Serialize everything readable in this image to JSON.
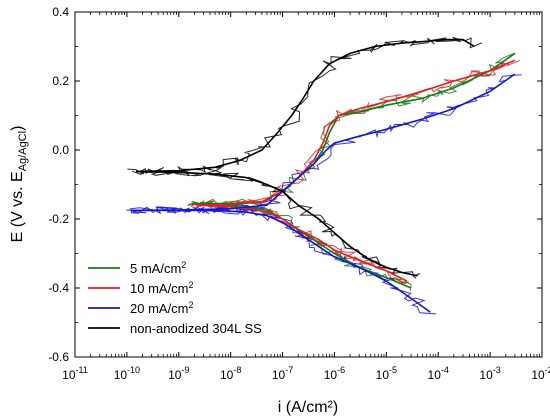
{
  "chart_data": {
    "type": "line",
    "xlabel": "i (A/cm²)",
    "ylabel": "E (V vs. E",
    "ylabel_sub": "Ag/AgCl",
    "ylabel_end": ")",
    "x_scale": "log",
    "xlim": [
      1e-11,
      0.01
    ],
    "ylim": [
      -0.6,
      0.4
    ],
    "grid": false,
    "legend_position": "bottom-left",
    "x_ticks": [
      {
        "value": 1e-11,
        "base": "10",
        "exp": "-11"
      },
      {
        "value": 1e-10,
        "base": "10",
        "exp": "-10"
      },
      {
        "value": 1e-09,
        "base": "10",
        "exp": "-9"
      },
      {
        "value": 1e-08,
        "base": "10",
        "exp": "-8"
      },
      {
        "value": 1e-07,
        "base": "10",
        "exp": "-7"
      },
      {
        "value": 1e-06,
        "base": "10",
        "exp": "-6"
      },
      {
        "value": 1e-05,
        "base": "10",
        "exp": "-5"
      },
      {
        "value": 0.0001,
        "base": "10",
        "exp": "-4"
      },
      {
        "value": 0.001,
        "base": "10",
        "exp": "-3"
      },
      {
        "value": 0.01,
        "base": "10",
        "exp": "-2"
      }
    ],
    "y_ticks": [
      {
        "value": 0.4,
        "label": "0.4"
      },
      {
        "value": 0.2,
        "label": "0.2"
      },
      {
        "value": 0.0,
        "label": "0.0"
      },
      {
        "value": -0.2,
        "label": "-0.2"
      },
      {
        "value": -0.4,
        "label": "-0.4"
      },
      {
        "value": -0.6,
        "label": "-0.6"
      }
    ],
    "series": [
      {
        "name": "5 mA/cm",
        "name_sup": "2",
        "color": "#1a7a1a",
        "cathodic": [
          [
            1.8e-09,
            -0.155
          ],
          [
            5e-09,
            -0.158
          ],
          [
            2e-08,
            -0.163
          ],
          [
            5e-08,
            -0.175
          ],
          [
            1e-07,
            -0.2
          ],
          [
            2e-07,
            -0.23
          ],
          [
            5e-07,
            -0.27
          ],
          [
            1e-06,
            -0.3
          ],
          [
            3e-06,
            -0.34
          ],
          [
            1e-05,
            -0.37
          ],
          [
            3e-05,
            -0.4
          ]
        ],
        "anodic": [
          [
            1.8e-09,
            -0.155
          ],
          [
            1e-08,
            -0.155
          ],
          [
            4e-08,
            -0.15
          ],
          [
            1e-07,
            -0.12
          ],
          [
            2e-07,
            -0.08
          ],
          [
            4e-07,
            -0.04
          ],
          [
            6e-07,
            0.0
          ],
          [
            8e-07,
            0.05
          ],
          [
            1.2e-06,
            0.1
          ],
          [
            3e-06,
            0.11
          ],
          [
            1e-05,
            0.13
          ],
          [
            5e-05,
            0.15
          ],
          [
            0.0002,
            0.18
          ],
          [
            0.001,
            0.23
          ],
          [
            0.003,
            0.28
          ]
        ]
      },
      {
        "name": "10 mA/cm",
        "name_sup": "2",
        "color": "#e02020",
        "cathodic": [
          [
            2.2e-09,
            -0.16
          ],
          [
            5e-09,
            -0.162
          ],
          [
            2e-08,
            -0.168
          ],
          [
            5e-08,
            -0.18
          ],
          [
            1e-07,
            -0.2
          ],
          [
            2e-07,
            -0.23
          ],
          [
            5e-07,
            -0.26
          ],
          [
            1e-06,
            -0.29
          ],
          [
            3e-06,
            -0.32
          ],
          [
            1e-05,
            -0.35
          ],
          [
            2.5e-05,
            -0.38
          ]
        ],
        "anodic": [
          [
            2.2e-09,
            -0.16
          ],
          [
            1e-08,
            -0.158
          ],
          [
            4e-08,
            -0.15
          ],
          [
            1e-07,
            -0.12
          ],
          [
            2e-07,
            -0.08
          ],
          [
            4e-07,
            -0.03
          ],
          [
            6e-07,
            0.02
          ],
          [
            8e-07,
            0.07
          ],
          [
            1.2e-06,
            0.1
          ],
          [
            3e-06,
            0.12
          ],
          [
            1e-05,
            0.14
          ],
          [
            5e-05,
            0.17
          ],
          [
            0.0002,
            0.2
          ],
          [
            0.001,
            0.23
          ],
          [
            0.003,
            0.26
          ]
        ]
      },
      {
        "name": "20 mA/cm",
        "name_sup": "2",
        "color": "#1414d4",
        "cathodic": [
          [
            1.2e-10,
            -0.175
          ],
          [
            5e-10,
            -0.175
          ],
          [
            5e-09,
            -0.175
          ],
          [
            2e-08,
            -0.18
          ],
          [
            5e-08,
            -0.19
          ],
          [
            1e-07,
            -0.21
          ],
          [
            2e-07,
            -0.24
          ],
          [
            5e-07,
            -0.28
          ],
          [
            1e-06,
            -0.31
          ],
          [
            3e-06,
            -0.34
          ],
          [
            1e-05,
            -0.38
          ],
          [
            3e-05,
            -0.43
          ],
          [
            7e-05,
            -0.47
          ]
        ],
        "anodic": [
          [
            1.2e-10,
            -0.175
          ],
          [
            1e-09,
            -0.174
          ],
          [
            1e-08,
            -0.17
          ],
          [
            5e-08,
            -0.16
          ],
          [
            1e-07,
            -0.12
          ],
          [
            2e-07,
            -0.08
          ],
          [
            4e-07,
            -0.04
          ],
          [
            7e-07,
            0.0
          ],
          [
            1e-06,
            0.02
          ],
          [
            3e-06,
            0.04
          ],
          [
            1e-05,
            0.06
          ],
          [
            5e-05,
            0.09
          ],
          [
            0.0002,
            0.12
          ],
          [
            0.001,
            0.17
          ],
          [
            0.003,
            0.22
          ]
        ]
      },
      {
        "name": "non-anodized 304L SS",
        "name_sup": "",
        "color": "#000000",
        "cathodic": [
          [
            1.5e-10,
            -0.062
          ],
          [
            1e-09,
            -0.065
          ],
          [
            5e-09,
            -0.07
          ],
          [
            2e-08,
            -0.08
          ],
          [
            5e-08,
            -0.1
          ],
          [
            1e-07,
            -0.12
          ],
          [
            2e-07,
            -0.16
          ],
          [
            5e-07,
            -0.2
          ],
          [
            1e-06,
            -0.24
          ],
          [
            2e-06,
            -0.28
          ],
          [
            5e-06,
            -0.32
          ],
          [
            1e-05,
            -0.34
          ],
          [
            2e-05,
            -0.355
          ],
          [
            4e-05,
            -0.365
          ]
        ],
        "anodic": [
          [
            1.5e-10,
            -0.062
          ],
          [
            1e-09,
            -0.06
          ],
          [
            5e-09,
            -0.05
          ],
          [
            1.5e-08,
            -0.03
          ],
          [
            4e-08,
            0.0
          ],
          [
            8e-08,
            0.05
          ],
          [
            1.5e-07,
            0.1
          ],
          [
            2.5e-07,
            0.15
          ],
          [
            4e-07,
            0.2
          ],
          [
            8e-07,
            0.25
          ],
          [
            2e-06,
            0.28
          ],
          [
            6e-06,
            0.3
          ],
          [
            2e-05,
            0.31
          ],
          [
            6e-05,
            0.315
          ],
          [
            0.00015,
            0.32
          ],
          [
            0.0003,
            0.32
          ],
          [
            0.0005,
            0.3
          ]
        ]
      }
    ]
  }
}
